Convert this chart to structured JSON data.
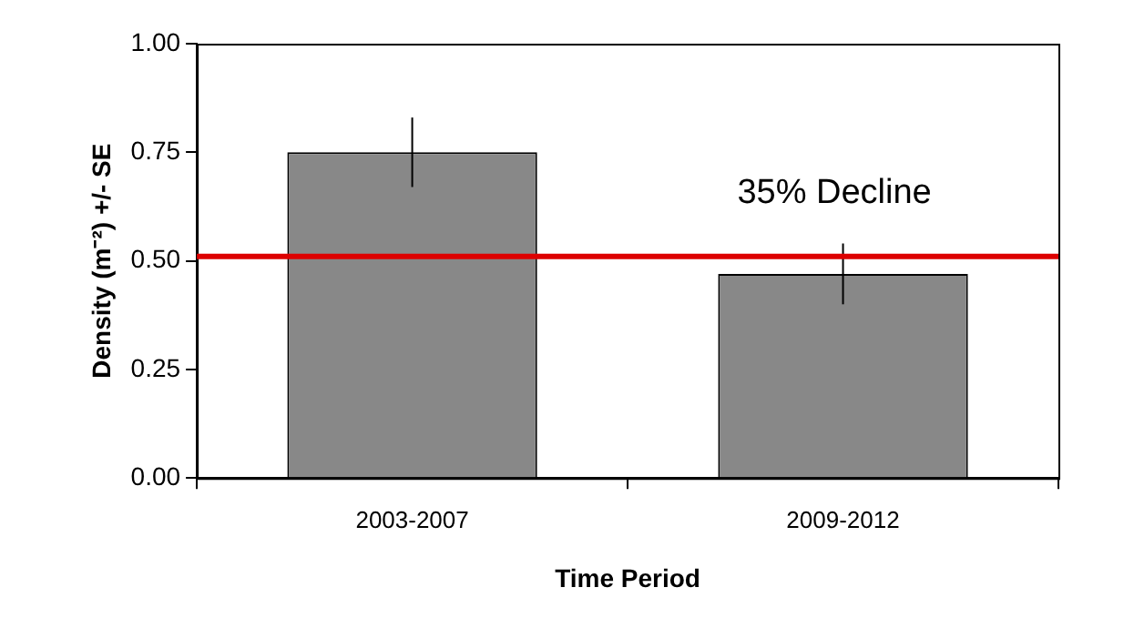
{
  "chart_data": {
    "type": "bar",
    "xlabel": "Time Period",
    "ylabel": "Density (m⁻²) +/- SE",
    "categories": [
      "2003-2007",
      "2009-2012"
    ],
    "values": [
      0.75,
      0.47
    ],
    "errors": [
      0.08,
      0.07
    ],
    "color": "#888888",
    "ylim": [
      0,
      1
    ],
    "yticks": [
      {
        "value": 0,
        "label": "0.00"
      },
      {
        "value": 0.25,
        "label": "0.25"
      },
      {
        "value": 0.5,
        "label": "0.50"
      },
      {
        "value": 0.75,
        "label": "0.75"
      },
      {
        "value": 1,
        "label": "1.00"
      }
    ],
    "ref_lines": [
      {
        "axis": "y",
        "value": 0.51,
        "color": "#dd0000"
      }
    ],
    "annotations": [
      "35% Decline"
    ],
    "grid": false,
    "legend": false
  }
}
